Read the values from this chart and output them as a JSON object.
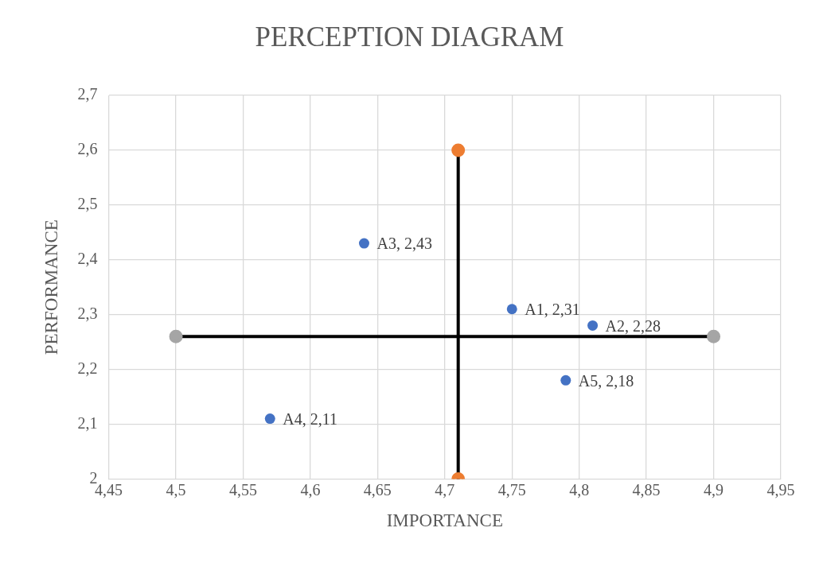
{
  "chart_data": {
    "type": "scatter",
    "title": "PERCEPTION DIAGRAM",
    "xlabel": "IMPORTANCE",
    "ylabel": "PERFORMANCE",
    "xlim": [
      4.45,
      4.95
    ],
    "ylim": [
      2,
      2.7
    ],
    "xticks": [
      {
        "value": 4.45,
        "label": "4,45"
      },
      {
        "value": 4.5,
        "label": "4,5"
      },
      {
        "value": 4.55,
        "label": "4,55"
      },
      {
        "value": 4.6,
        "label": "4,6"
      },
      {
        "value": 4.65,
        "label": "4,65"
      },
      {
        "value": 4.7,
        "label": "4,7"
      },
      {
        "value": 4.75,
        "label": "4,75"
      },
      {
        "value": 4.8,
        "label": "4,8"
      },
      {
        "value": 4.85,
        "label": "4,85"
      },
      {
        "value": 4.9,
        "label": "4,9"
      },
      {
        "value": 4.95,
        "label": "4,95"
      }
    ],
    "yticks": [
      {
        "value": 2,
        "label": "2"
      },
      {
        "value": 2.1,
        "label": "2,1"
      },
      {
        "value": 2.2,
        "label": "2,2"
      },
      {
        "value": 2.3,
        "label": "2,3"
      },
      {
        "value": 2.4,
        "label": "2,4"
      },
      {
        "value": 2.5,
        "label": "2,5"
      },
      {
        "value": 2.6,
        "label": "2,6"
      },
      {
        "value": 2.7,
        "label": "2,7"
      }
    ],
    "grid": true,
    "legend": false,
    "marker": "circle",
    "series": [
      {
        "type": "line",
        "color": "#000000",
        "colors": [
          "#a5a5a5",
          "#a5a5a5"
        ],
        "x": [
          4.5,
          4.9
        ],
        "values": [
          2.26,
          2.26
        ]
      },
      {
        "type": "line",
        "color": "#000000",
        "colors": [
          "#ed7d31",
          "#ed7d31"
        ],
        "x": [
          4.71,
          4.71
        ],
        "values": [
          2.6,
          2.0
        ]
      },
      {
        "type": "scatter",
        "color": "#4472c4",
        "x": [
          4.75,
          4.81,
          4.64,
          4.57,
          4.79
        ],
        "values": [
          2.31,
          2.28,
          2.43,
          2.11,
          2.18
        ],
        "value_labels": [
          "A1, 2,31",
          "A2, 2,28",
          "A3, 2,43",
          "A4, 2,11",
          "A5, 2,18"
        ]
      }
    ]
  }
}
